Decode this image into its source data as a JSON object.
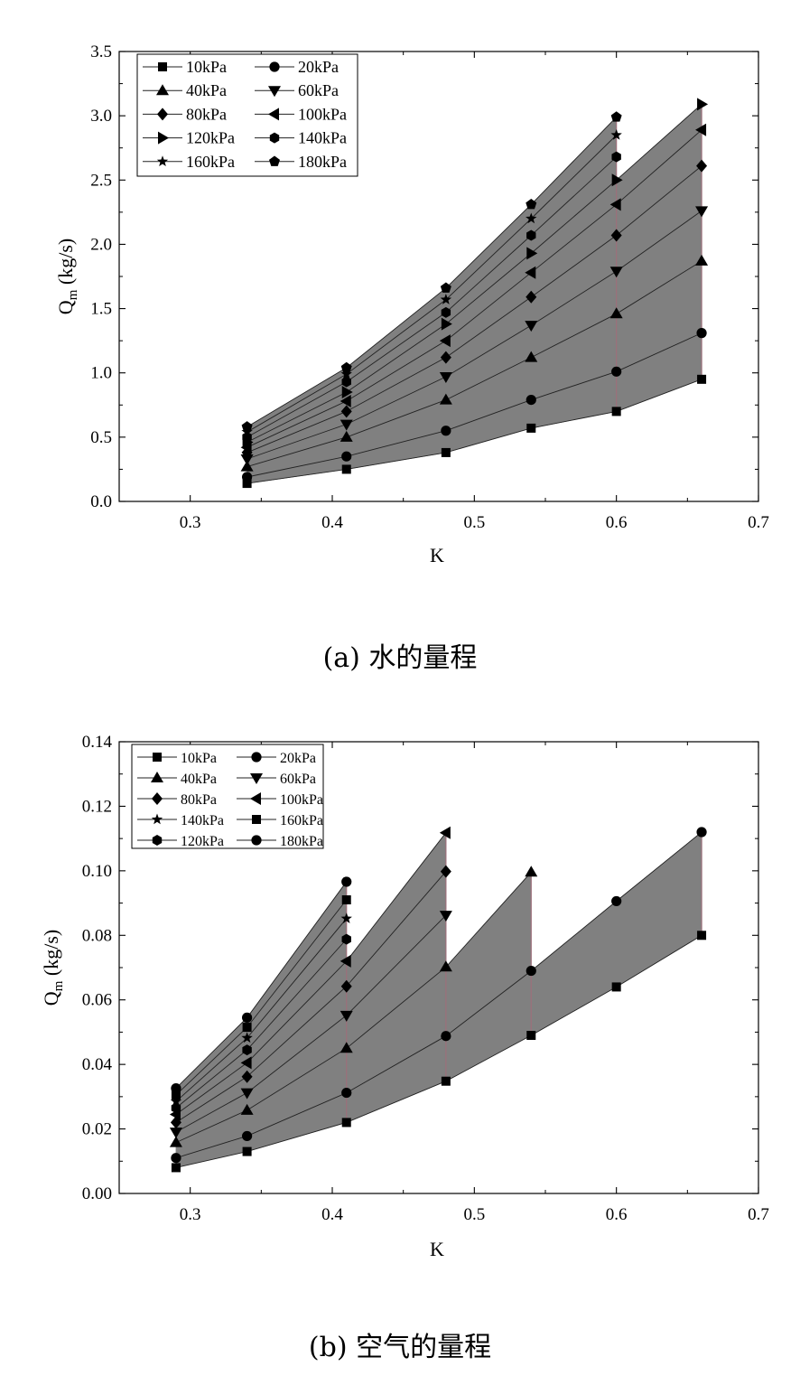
{
  "captions": {
    "a": "(a) 水的量程",
    "b": "(b) 空气的量程"
  },
  "chart_data": [
    {
      "type": "line",
      "title": "",
      "xlabel": "K",
      "ylabel_main": "Q",
      "ylabel_sub": "m",
      "ylabel_unit": "(kg/s)",
      "xlim": [
        0.25,
        0.7
      ],
      "ylim": [
        0,
        3.5
      ],
      "xticks": [
        0.3,
        0.4,
        0.5,
        0.6,
        0.7
      ],
      "xtick_labels": [
        "0.3",
        "0.4",
        "0.5",
        "0.6",
        "0.7"
      ],
      "yticks": [
        0,
        0.5,
        1.0,
        1.5,
        2.0,
        2.5,
        3.0,
        3.5
      ],
      "ytick_labels": [
        "0.0",
        "0.5",
        "1.0",
        "1.5",
        "2.0",
        "2.5",
        "3.0",
        "3.5"
      ],
      "grid": false,
      "legend_position": "top-left",
      "fill_color": "#808080",
      "edge_color": "#9c6f7a",
      "upper_envelope": [
        [
          0.34,
          0.58
        ],
        [
          0.41,
          1.04
        ],
        [
          0.48,
          1.66
        ],
        [
          0.54,
          2.31
        ],
        [
          0.6,
          2.99
        ]
      ],
      "upper_envelope_tail": [
        [
          0.6,
          2.5
        ],
        [
          0.66,
          3.09
        ]
      ],
      "lower_envelope": [
        [
          0.34,
          0.14
        ],
        [
          0.41,
          0.25
        ],
        [
          0.48,
          0.38
        ],
        [
          0.54,
          0.57
        ],
        [
          0.6,
          0.7
        ],
        [
          0.66,
          0.95
        ]
      ],
      "series": [
        {
          "name": "10kPa",
          "marker": "square",
          "x": [
            0.34,
            0.41,
            0.48,
            0.54,
            0.6,
            0.66
          ],
          "y": [
            0.14,
            0.25,
            0.38,
            0.57,
            0.7,
            0.95
          ]
        },
        {
          "name": "20kPa",
          "marker": "circle",
          "x": [
            0.34,
            0.41,
            0.48,
            0.54,
            0.6,
            0.66
          ],
          "y": [
            0.19,
            0.35,
            0.55,
            0.79,
            1.01,
            1.31
          ]
        },
        {
          "name": "40kPa",
          "marker": "triangle-up",
          "x": [
            0.34,
            0.41,
            0.48,
            0.54,
            0.6,
            0.66
          ],
          "y": [
            0.27,
            0.5,
            0.79,
            1.12,
            1.46,
            1.87
          ]
        },
        {
          "name": "60kPa",
          "marker": "triangle-down",
          "x": [
            0.34,
            0.41,
            0.48,
            0.54,
            0.6,
            0.66
          ],
          "y": [
            0.33,
            0.6,
            0.97,
            1.37,
            1.79,
            2.26
          ]
        },
        {
          "name": "80kPa",
          "marker": "diamond",
          "x": [
            0.34,
            0.41,
            0.48,
            0.54,
            0.6,
            0.66
          ],
          "y": [
            0.38,
            0.7,
            1.12,
            1.59,
            2.07,
            2.61
          ]
        },
        {
          "name": "100kPa",
          "marker": "triangle-left",
          "x": [
            0.34,
            0.41,
            0.48,
            0.54,
            0.6,
            0.66
          ],
          "y": [
            0.42,
            0.78,
            1.25,
            1.78,
            2.31,
            2.89
          ]
        },
        {
          "name": "120kPa",
          "marker": "triangle-right",
          "x": [
            0.34,
            0.41,
            0.48,
            0.54,
            0.6,
            0.66
          ],
          "y": [
            0.46,
            0.85,
            1.38,
            1.93,
            2.5,
            3.09
          ]
        },
        {
          "name": "140kPa",
          "marker": "hexagon",
          "x": [
            0.34,
            0.41,
            0.48,
            0.54,
            0.6
          ],
          "y": [
            0.5,
            0.93,
            1.47,
            2.07,
            2.68
          ]
        },
        {
          "name": "160kPa",
          "marker": "star",
          "x": [
            0.34,
            0.41,
            0.48,
            0.54,
            0.6
          ],
          "y": [
            0.54,
            0.99,
            1.57,
            2.2,
            2.85
          ]
        },
        {
          "name": "180kPa",
          "marker": "pentagon",
          "x": [
            0.34,
            0.41,
            0.48,
            0.54,
            0.6
          ],
          "y": [
            0.58,
            1.04,
            1.66,
            2.31,
            2.99
          ]
        }
      ]
    },
    {
      "type": "line",
      "title": "",
      "xlabel": "K",
      "ylabel_main": "Q",
      "ylabel_sub": "m",
      "ylabel_unit": "(kg/s)",
      "xlim": [
        0.25,
        0.7
      ],
      "ylim": [
        0,
        0.14
      ],
      "xticks": [
        0.3,
        0.4,
        0.5,
        0.6,
        0.7
      ],
      "xtick_labels": [
        "0.3",
        "0.4",
        "0.5",
        "0.6",
        "0.7"
      ],
      "yticks": [
        0,
        0.02,
        0.04,
        0.06,
        0.08,
        0.1,
        0.12,
        0.14
      ],
      "ytick_labels": [
        "0.00",
        "0.02",
        "0.04",
        "0.06",
        "0.08",
        "0.10",
        "0.12",
        "0.14"
      ],
      "grid": false,
      "legend_position": "top-left",
      "fill_color": "#808080",
      "edge_color": "#9c6f7a",
      "series": [
        {
          "name": "10kPa",
          "marker": "square",
          "x": [
            0.29,
            0.34,
            0.41,
            0.48,
            0.54,
            0.6,
            0.66
          ],
          "y": [
            0.008,
            0.013,
            0.022,
            0.0348,
            0.049,
            0.064,
            0.08
          ]
        },
        {
          "name": "20kPa",
          "marker": "circle",
          "x": [
            0.29,
            0.34,
            0.41,
            0.48,
            0.54,
            0.6,
            0.66
          ],
          "y": [
            0.011,
            0.0178,
            0.0312,
            0.0488,
            0.069,
            0.0906,
            0.112
          ]
        },
        {
          "name": "40kPa",
          "marker": "triangle-up",
          "x": [
            0.29,
            0.34,
            0.41,
            0.48,
            0.54
          ],
          "y": [
            0.0158,
            0.0258,
            0.045,
            0.0702,
            0.0996
          ]
        },
        {
          "name": "60kPa",
          "marker": "triangle-down",
          "x": [
            0.29,
            0.34,
            0.41,
            0.48
          ],
          "y": [
            0.019,
            0.0312,
            0.0552,
            0.0862
          ]
        },
        {
          "name": "80kPa",
          "marker": "diamond",
          "x": [
            0.29,
            0.34,
            0.41,
            0.48
          ],
          "y": [
            0.022,
            0.0362,
            0.0642,
            0.0998
          ]
        },
        {
          "name": "100kPa",
          "marker": "triangle-left",
          "x": [
            0.29,
            0.34,
            0.41,
            0.48
          ],
          "y": [
            0.0245,
            0.0405,
            0.072,
            0.1118
          ]
        },
        {
          "name": "140kPa",
          "marker": "star",
          "x": [
            0.29,
            0.34,
            0.41
          ],
          "y": [
            0.0285,
            0.0482,
            0.0852
          ]
        },
        {
          "name": "160kPa",
          "marker": "square",
          "x": [
            0.29,
            0.34,
            0.41
          ],
          "y": [
            0.0305,
            0.0515,
            0.091
          ]
        },
        {
          "name": "120kPa",
          "marker": "hexagon",
          "x": [
            0.29,
            0.34,
            0.41
          ],
          "y": [
            0.0265,
            0.0445,
            0.0788
          ]
        },
        {
          "name": "180kPa",
          "marker": "circle",
          "x": [
            0.29,
            0.34,
            0.41
          ],
          "y": [
            0.0326,
            0.0545,
            0.0966
          ]
        }
      ]
    }
  ]
}
